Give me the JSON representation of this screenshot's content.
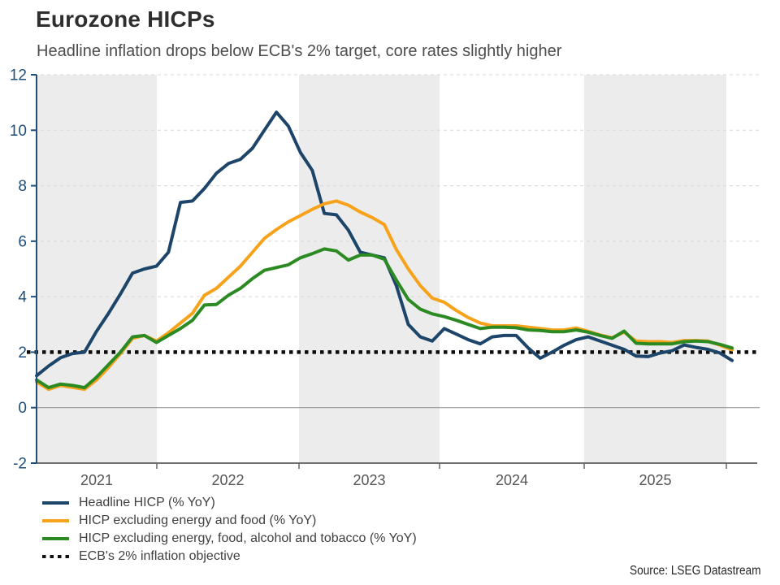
{
  "title": "Eurozone HICPs",
  "subtitle": "Headline inflation drops below ECB's 2% target, core rates slightly higher",
  "source": "Source: LSEG Datastream",
  "chart_data": {
    "type": "line",
    "title": "Eurozone HICPs",
    "subtitle": "Headline inflation drops below ECB's 2% target, core rates slightly higher",
    "x_axis": {
      "tick_labels": [
        "2021",
        "2022",
        "2023",
        "2024",
        "2025"
      ],
      "note": "monthly observations, alternating year shading"
    },
    "y_axis": {
      "range": [
        -2,
        12
      ],
      "ticks": [
        -2,
        0,
        2,
        4,
        6,
        8,
        10,
        12
      ],
      "grid": "horizontal-dashed",
      "zero_line": true
    },
    "legend_position": "bottom-left",
    "series": [
      {
        "name": "Headline HICP (% YoY)",
        "color": "#1d4569",
        "style": "solid",
        "values": [
          1.15,
          1.5,
          1.8,
          1.95,
          2.0,
          2.75,
          3.4,
          4.1,
          4.85,
          5.0,
          5.1,
          5.6,
          7.4,
          7.45,
          7.9,
          8.45,
          8.8,
          8.95,
          9.35,
          10.0,
          10.65,
          10.15,
          9.2,
          8.55,
          7.0,
          6.95,
          6.4,
          5.6,
          5.5,
          5.4,
          4.4,
          3.0,
          2.55,
          2.4,
          2.85,
          2.65,
          2.45,
          2.3,
          2.55,
          2.6,
          2.6,
          2.15,
          1.78,
          2.0,
          2.25,
          2.45,
          2.55,
          2.4,
          2.25,
          2.1,
          1.86,
          1.84,
          1.97,
          2.05,
          2.26,
          2.17,
          2.1,
          1.97,
          1.7
        ]
      },
      {
        "name": "HICP excluding energy and food (% YoY)",
        "color": "#f7a21b",
        "style": "solid",
        "values": [
          0.93,
          0.66,
          0.8,
          0.73,
          0.66,
          1.0,
          1.45,
          1.95,
          2.5,
          2.6,
          2.4,
          2.7,
          3.05,
          3.4,
          4.05,
          4.3,
          4.7,
          5.1,
          5.6,
          6.1,
          6.42,
          6.7,
          6.92,
          7.15,
          7.35,
          7.45,
          7.3,
          7.05,
          6.85,
          6.6,
          5.7,
          5.0,
          4.4,
          3.95,
          3.8,
          3.5,
          3.25,
          3.05,
          2.95,
          2.95,
          2.95,
          2.9,
          2.85,
          2.8,
          2.8,
          2.87,
          2.75,
          2.62,
          2.52,
          2.72,
          2.4,
          2.38,
          2.38,
          2.35,
          2.42,
          2.42,
          2.4,
          2.25,
          2.08
        ]
      },
      {
        "name": "HICP excluding energy, food, alcohol and tobacco (% YoY)",
        "color": "#2b8a22",
        "style": "solid",
        "values": [
          1.0,
          0.72,
          0.85,
          0.8,
          0.72,
          1.1,
          1.55,
          2.0,
          2.55,
          2.6,
          2.35,
          2.6,
          2.85,
          3.15,
          3.7,
          3.72,
          4.05,
          4.3,
          4.65,
          4.95,
          5.05,
          5.15,
          5.4,
          5.55,
          5.72,
          5.65,
          5.32,
          5.5,
          5.5,
          5.35,
          4.6,
          3.9,
          3.55,
          3.38,
          3.28,
          3.15,
          3.0,
          2.85,
          2.9,
          2.9,
          2.88,
          2.8,
          2.78,
          2.74,
          2.74,
          2.8,
          2.72,
          2.6,
          2.5,
          2.76,
          2.32,
          2.3,
          2.3,
          2.3,
          2.38,
          2.4,
          2.38,
          2.28,
          2.15
        ]
      },
      {
        "name": "ECB's 2% inflation objective",
        "color": "#0d0d0d",
        "style": "dotted",
        "value": 2
      }
    ],
    "colors": {
      "axis_blue": "#1f4e79",
      "band_gray": "#ececec",
      "grid_gray": "#d9d9d9",
      "zero_line_gray": "#8c8c8c",
      "tick_text_gray": "#555555"
    }
  }
}
